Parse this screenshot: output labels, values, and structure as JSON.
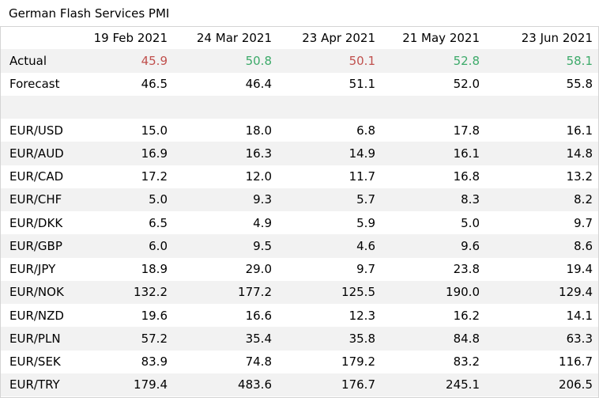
{
  "title": "German Flash Services PMI",
  "columns": [
    "19 Feb 2021",
    "24 Mar 2021",
    "23 Apr 2021",
    "21 May 2021",
    "23 Jun 2021"
  ],
  "actual": {
    "label": "Actual",
    "values": [
      "45.9",
      "50.8",
      "50.1",
      "52.8",
      "58.1"
    ],
    "direction": [
      "down",
      "up",
      "down",
      "up",
      "up"
    ]
  },
  "forecast": {
    "label": "Forecast",
    "values": [
      "46.5",
      "46.4",
      "51.1",
      "52.0",
      "55.8"
    ]
  },
  "rows": [
    {
      "label": "EUR/USD",
      "values": [
        "15.0",
        "18.0",
        "6.8",
        "17.8",
        "16.1"
      ]
    },
    {
      "label": "EUR/AUD",
      "values": [
        "16.9",
        "16.3",
        "14.9",
        "16.1",
        "14.8"
      ]
    },
    {
      "label": "EUR/CAD",
      "values": [
        "17.2",
        "12.0",
        "11.7",
        "16.8",
        "13.2"
      ]
    },
    {
      "label": "EUR/CHF",
      "values": [
        "5.0",
        "9.3",
        "5.7",
        "8.3",
        "8.2"
      ]
    },
    {
      "label": "EUR/DKK",
      "values": [
        "6.5",
        "4.9",
        "5.9",
        "5.0",
        "9.7"
      ]
    },
    {
      "label": "EUR/GBP",
      "values": [
        "6.0",
        "9.5",
        "4.6",
        "9.6",
        "8.6"
      ]
    },
    {
      "label": "EUR/JPY",
      "values": [
        "18.9",
        "29.0",
        "9.7",
        "23.8",
        "19.4"
      ]
    },
    {
      "label": "EUR/NOK",
      "values": [
        "132.2",
        "177.2",
        "125.5",
        "190.0",
        "129.4"
      ]
    },
    {
      "label": "EUR/NZD",
      "values": [
        "19.6",
        "16.6",
        "12.3",
        "16.2",
        "14.1"
      ]
    },
    {
      "label": "EUR/PLN",
      "values": [
        "57.2",
        "35.4",
        "35.8",
        "84.8",
        "63.3"
      ]
    },
    {
      "label": "EUR/SEK",
      "values": [
        "83.9",
        "74.8",
        "179.2",
        "83.2",
        "116.7"
      ]
    },
    {
      "label": "EUR/TRY",
      "values": [
        "179.4",
        "483.6",
        "176.7",
        "245.1",
        "206.5"
      ]
    }
  ],
  "colors": {
    "down": "#c0504d",
    "up": "#3daa6a",
    "shade": "#f2f2f2",
    "border": "#d4d4d4"
  }
}
